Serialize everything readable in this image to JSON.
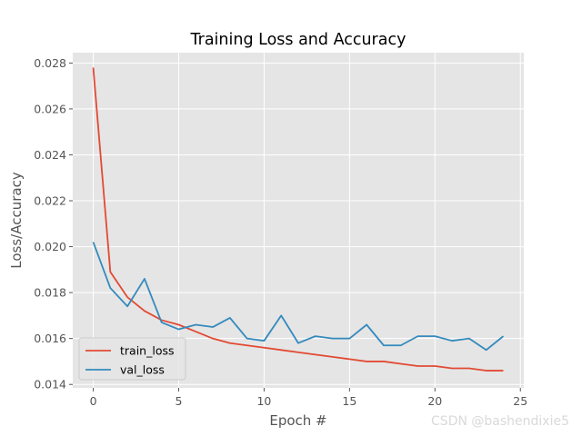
{
  "chart_data": {
    "type": "line",
    "title": "Training Loss and Accuracy",
    "xlabel": "Epoch #",
    "ylabel": "Loss/Accuracy",
    "xlim": [
      -1.2,
      25.2
    ],
    "ylim": [
      0.01385,
      0.02845
    ],
    "xticks": [
      0,
      5,
      10,
      15,
      20,
      25
    ],
    "xtick_labels": [
      "0",
      "5",
      "10",
      "15",
      "20",
      "25"
    ],
    "yticks": [
      0.014,
      0.016,
      0.018,
      0.02,
      0.022,
      0.024,
      0.026,
      0.028
    ],
    "ytick_labels": [
      "0.014",
      "0.016",
      "0.018",
      "0.020",
      "0.022",
      "0.024",
      "0.026",
      "0.028"
    ],
    "grid": true,
    "legend_position": "lower-left",
    "x": [
      0,
      1,
      2,
      3,
      4,
      5,
      6,
      7,
      8,
      9,
      10,
      11,
      12,
      13,
      14,
      15,
      16,
      17,
      18,
      19,
      20,
      21,
      22,
      23,
      24
    ],
    "series": [
      {
        "name": "train_loss",
        "color": "#e24a33",
        "values": [
          0.0278,
          0.0189,
          0.0178,
          0.0172,
          0.0168,
          0.0166,
          0.0163,
          0.016,
          0.0158,
          0.0157,
          0.0156,
          0.0155,
          0.0154,
          0.0153,
          0.0152,
          0.0151,
          0.015,
          0.015,
          0.0149,
          0.0148,
          0.0148,
          0.0147,
          0.0147,
          0.0146,
          0.0146
        ]
      },
      {
        "name": "val_loss",
        "color": "#348abd",
        "values": [
          0.0202,
          0.0182,
          0.0174,
          0.0186,
          0.0167,
          0.0164,
          0.0166,
          0.0165,
          0.0169,
          0.016,
          0.0159,
          0.017,
          0.0158,
          0.0161,
          0.016,
          0.016,
          0.0166,
          0.0157,
          0.0157,
          0.0161,
          0.0161,
          0.0159,
          0.016,
          0.0155,
          0.0161
        ]
      }
    ]
  },
  "watermark": "CSDN @bashendixie5"
}
